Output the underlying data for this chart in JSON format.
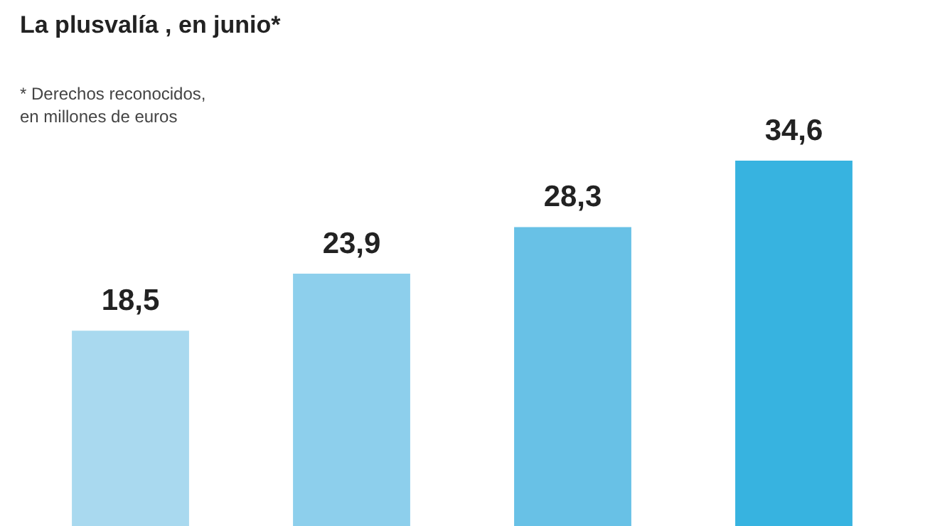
{
  "chart_data": {
    "type": "bar",
    "title": "La plusvalía , en junio*",
    "annotations": [
      "* Derechos reconocidos,\nen millones de euros"
    ],
    "categories": [
      null,
      null,
      null,
      null
    ],
    "values": [
      18.5,
      23.9,
      28.3,
      34.6
    ],
    "colors": [
      "#a9d9ef",
      "#8dcfec",
      "#68c1e6",
      "#37b3e0"
    ],
    "value_labels": [
      "18,5",
      "23,9",
      "28,3",
      "34,6"
    ],
    "relative": false,
    "tick_labels": false,
    "grid": false,
    "legend": false
  }
}
